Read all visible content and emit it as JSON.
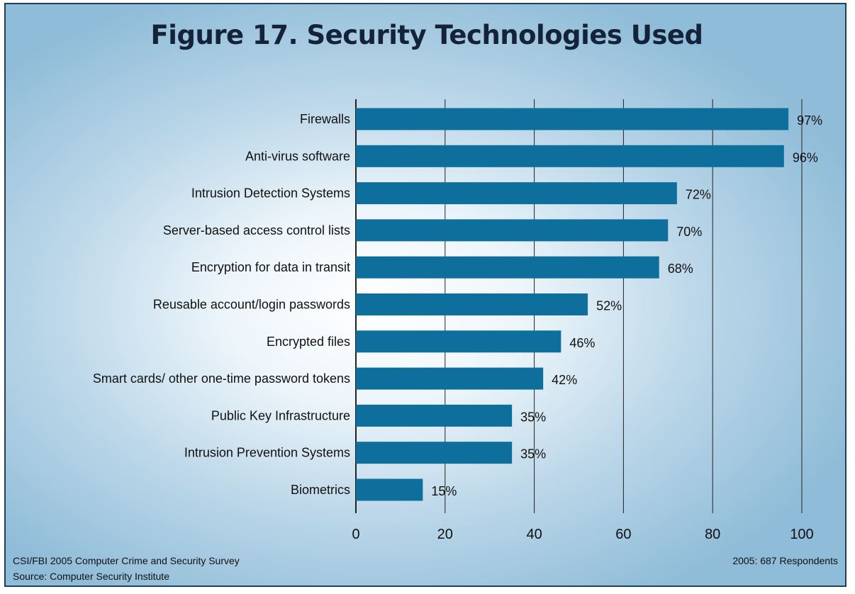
{
  "chart_data": {
    "type": "bar",
    "orientation": "horizontal",
    "title": "Figure 17. Security Technologies Used",
    "categories": [
      "Firewalls",
      "Anti-virus software",
      "Intrusion Detection Systems",
      "Server-based access control lists",
      "Encryption for data in transit",
      "Reusable account/login passwords",
      "Encrypted files",
      "Smart cards/ other one-time password tokens",
      "Public Key Infrastructure",
      "Intrusion Prevention Systems",
      "Biometrics"
    ],
    "values": [
      97,
      96,
      72,
      70,
      68,
      52,
      46,
      42,
      35,
      35,
      15
    ],
    "value_labels": [
      "97%",
      "96%",
      "72%",
      "70%",
      "68%",
      "52%",
      "46%",
      "42%",
      "35%",
      "35%",
      "15%"
    ],
    "xlim": [
      0,
      100
    ],
    "xticks": [
      0,
      20,
      40,
      60,
      80,
      100
    ],
    "xlabel": "",
    "ylabel": "",
    "grid": "vertical",
    "bar_color": "#0f6f9c"
  },
  "footer": {
    "survey": "CSI/FBI 2005 Computer Crime and Security Survey",
    "source": "Source: Computer Security Institute",
    "respondents": "2005: 687 Respondents"
  },
  "colors": {
    "bar": "#0f6f9c",
    "grid": "#222222",
    "title": "#15233a"
  }
}
